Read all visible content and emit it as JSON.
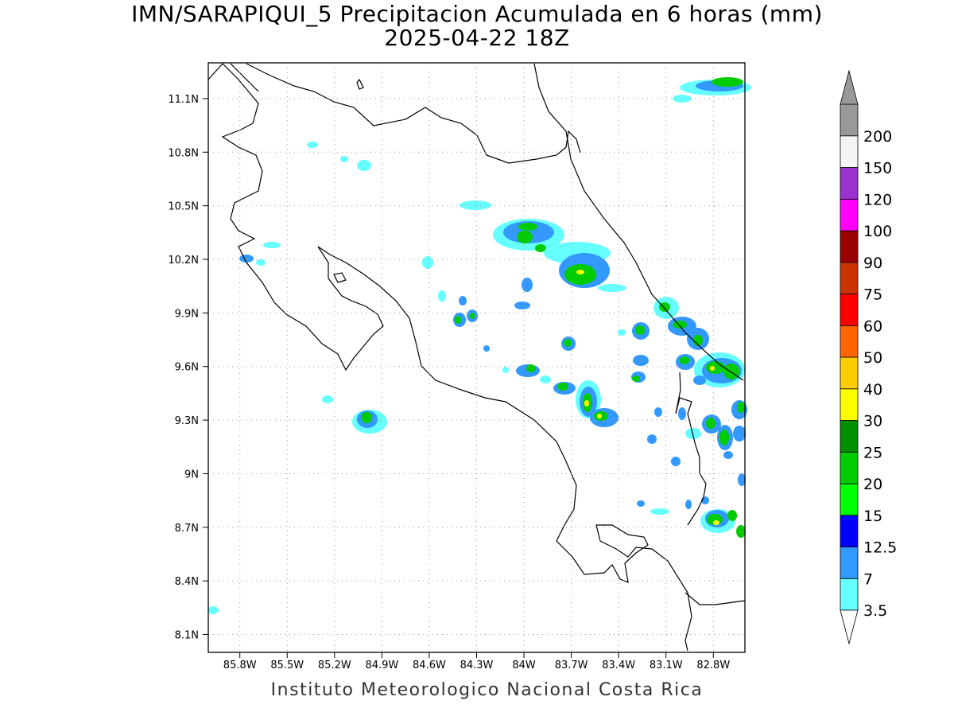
{
  "header": {
    "title_line1": "IMN/SARAPIQUI_5 Precipitacion Acumulada en 6 horas (mm)",
    "title_line2": "2025-04-22 18Z"
  },
  "footer": {
    "text": "Instituto Meteorologico Nacional Costa Rica"
  },
  "map": {
    "lon_range": [
      -86.0,
      -82.6
    ],
    "lat_range": [
      8.0,
      11.3
    ],
    "lon_ticks": [
      {
        "value": -85.8,
        "label": "85.8W"
      },
      {
        "value": -85.5,
        "label": "85.5W"
      },
      {
        "value": -85.2,
        "label": "85.2W"
      },
      {
        "value": -84.9,
        "label": "84.9W"
      },
      {
        "value": -84.6,
        "label": "84.6W"
      },
      {
        "value": -84.3,
        "label": "84.3W"
      },
      {
        "value": -84.0,
        "label": "84W"
      },
      {
        "value": -83.7,
        "label": "83.7W"
      },
      {
        "value": -83.4,
        "label": "83.4W"
      },
      {
        "value": -83.1,
        "label": "83.1W"
      },
      {
        "value": -82.8,
        "label": "82.8W"
      }
    ],
    "lat_ticks": [
      {
        "value": 11.1,
        "label": "11.1N"
      },
      {
        "value": 10.8,
        "label": "10.8N"
      },
      {
        "value": 10.5,
        "label": "10.5N"
      },
      {
        "value": 10.2,
        "label": "10.2N"
      },
      {
        "value": 9.9,
        "label": "9.9N"
      },
      {
        "value": 9.6,
        "label": "9.6N"
      },
      {
        "value": 9.3,
        "label": "9.3N"
      },
      {
        "value": 9.0,
        "label": "9N"
      },
      {
        "value": 8.7,
        "label": "8.7N"
      },
      {
        "value": 8.4,
        "label": "8.4N"
      },
      {
        "value": 8.1,
        "label": "8.1N"
      }
    ]
  },
  "colorbar": {
    "levels": [
      "3.5",
      "7",
      "12.5",
      "15",
      "20",
      "25",
      "30",
      "40",
      "50",
      "60",
      "75",
      "90",
      "100",
      "120",
      "150",
      "200"
    ],
    "colors": [
      "#66ffff",
      "#3399ff",
      "#0000ff",
      "#00ff00",
      "#00cc00",
      "#008f00",
      "#ffff00",
      "#ffcc00",
      "#ff6600",
      "#ff0000",
      "#cc3300",
      "#990000",
      "#ff00ff",
      "#9933cc",
      "#f5f5f5",
      "#999999"
    ]
  }
}
